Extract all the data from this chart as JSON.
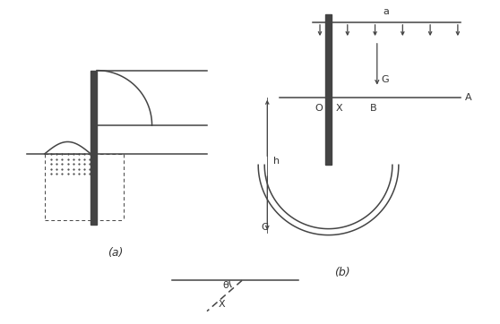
{
  "bg_color": "#ffffff",
  "line_color": "#444444",
  "text_color": "#333333",
  "fig_width": 5.58,
  "fig_height": 3.62,
  "dpi": 100,
  "label_a": "(a)",
  "label_b": "(b)",
  "labels": {
    "a": "a",
    "A": "A",
    "G": "G",
    "h": "h",
    "C": "C",
    "O": "O",
    "X_b": "X",
    "B": "B",
    "theta": "θ",
    "X_bot": "X"
  }
}
